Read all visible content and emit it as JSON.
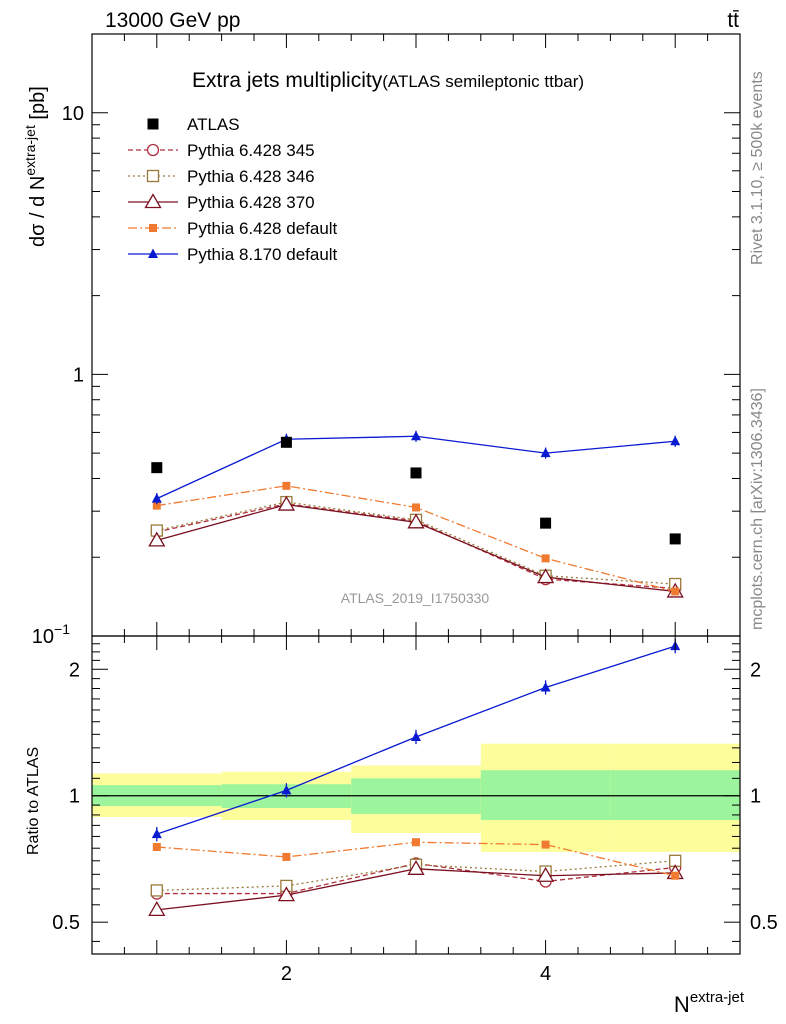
{
  "header": {
    "left": "13000 GeV pp",
    "right": "tt̄"
  },
  "side": {
    "rivet": "Rivet 3.1.10, ≥ 500k events",
    "mcplots": "mcplots.cern.ch [arXiv:1306.3436]"
  },
  "chart_data": {
    "type": "line",
    "title_main": "Extra jets multiplicity",
    "title_sub": "(ATLAS semileptonic ttbar)",
    "watermark": "ATLAS_2019_I1750330",
    "ylabel": "dσ / d N^extra-jet [pb]",
    "ylabel_parts": {
      "pre": "dσ / d N",
      "sup": "extra-jet",
      "post": " [pb]"
    },
    "ratio_ylabel": "Ratio to ATLAS",
    "xlabel": "N^extra-jet",
    "xlabel_parts": {
      "base": "N",
      "sup": "extra-jet"
    },
    "xlim": [
      0.5,
      5.5
    ],
    "ylim": [
      0.1,
      20
    ],
    "yscale": "log",
    "ratio_ylim": [
      0.42,
      2.4
    ],
    "ratio_yscale": "log",
    "x": [
      1,
      2,
      3,
      4,
      5
    ],
    "x_ticks": [
      {
        "v": 2,
        "label": "2"
      },
      {
        "v": 4,
        "label": "4"
      }
    ],
    "y_ticks": [
      {
        "v": 0.1,
        "label": "10",
        "sup": "−1"
      },
      {
        "v": 1,
        "label": "1",
        "sup": ""
      },
      {
        "v": 10,
        "label": "10",
        "sup": ""
      }
    ],
    "ratio_ticks": [
      {
        "v": 0.5,
        "label": "0.5"
      },
      {
        "v": 1,
        "label": "1"
      },
      {
        "v": 2,
        "label": "2"
      }
    ],
    "data": {
      "name": "ATLAS",
      "color": "#000000",
      "values": [
        0.44,
        0.55,
        0.42,
        0.27,
        0.235
      ]
    },
    "series": [
      {
        "name": "Pythia 6.428 345",
        "color": "#b03040",
        "dash": "5,3",
        "marker": "circle-open",
        "values": [
          0.25,
          0.32,
          0.275,
          0.165,
          0.152
        ],
        "ratio": [
          0.585,
          0.585,
          0.69,
          0.625,
          0.675
        ]
      },
      {
        "name": "Pythia 6.428 346",
        "color": "#9a7a3a",
        "dash": "2,3",
        "marker": "square-open",
        "values": [
          0.253,
          0.325,
          0.278,
          0.17,
          0.158
        ],
        "ratio": [
          0.595,
          0.61,
          0.685,
          0.66,
          0.7
        ]
      },
      {
        "name": "Pythia 6.428 370",
        "color": "#7a1020",
        "dash": "",
        "marker": "triangle-open",
        "values": [
          0.232,
          0.318,
          0.272,
          0.168,
          0.148
        ],
        "ratio": [
          0.535,
          0.58,
          0.67,
          0.645,
          0.655
        ]
      },
      {
        "name": "Pythia 6.428 default",
        "color": "#f07a30",
        "dash": "9,3,2,3",
        "marker": "square-filled",
        "values": [
          0.315,
          0.375,
          0.31,
          0.198,
          0.148
        ],
        "ratio": [
          0.755,
          0.715,
          0.775,
          0.765,
          0.645
        ]
      },
      {
        "name": "Pythia 8.170 default",
        "color": "#0a1ad0",
        "dash": "",
        "marker": "triangle-filled",
        "values": [
          0.335,
          0.565,
          0.58,
          0.5,
          0.555
        ],
        "ratio": [
          0.81,
          1.03,
          1.38,
          1.81,
          2.27
        ]
      }
    ],
    "uncertainty_bands": [
      {
        "x": [
          0.5,
          1.5
        ],
        "inner": [
          0.945,
          1.06
        ],
        "outer": [
          0.89,
          1.13
        ]
      },
      {
        "x": [
          1.5,
          2.5
        ],
        "inner": [
          0.935,
          1.065
        ],
        "outer": [
          0.875,
          1.14
        ]
      },
      {
        "x": [
          2.5,
          3.5
        ],
        "inner": [
          0.905,
          1.1
        ],
        "outer": [
          0.815,
          1.18
        ]
      },
      {
        "x": [
          3.5,
          4.5
        ],
        "inner": [
          0.875,
          1.15
        ],
        "outer": [
          0.735,
          1.33
        ]
      },
      {
        "x": [
          4.5,
          5.5
        ],
        "inner": [
          0.875,
          1.15
        ],
        "outer": [
          0.735,
          1.33
        ]
      }
    ],
    "colors": {
      "band_inner": "#9cf59c",
      "band_outer": "#fdfd9b"
    }
  }
}
